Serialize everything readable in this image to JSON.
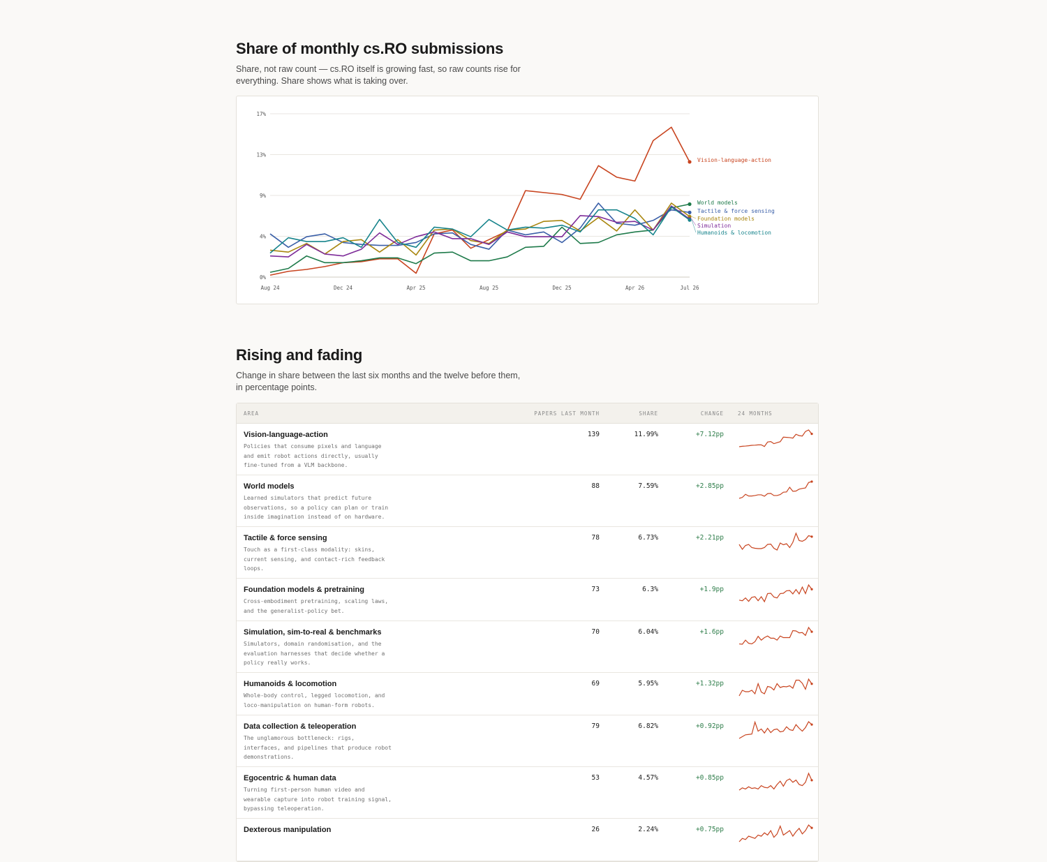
{
  "section1": {
    "title": "Share of monthly cs.RO submissions",
    "subtitle": "Share, not raw count — cs.RO itself is growing fast, so raw counts rise for everything. Share shows what is taking over."
  },
  "chart_data": {
    "type": "line",
    "x": [
      "Aug 24",
      "Sep 24",
      "Oct 24",
      "Nov 24",
      "Dec 24",
      "Jan 25",
      "Feb 25",
      "Mar 25",
      "Apr 25",
      "May 25",
      "Jun 25",
      "Jul 25",
      "Aug 25",
      "Sep 25",
      "Oct 25",
      "Nov 25",
      "Dec 25",
      "Jan 26",
      "Feb 26",
      "Mar 26",
      "Apr 26",
      "May 26",
      "Jun 26",
      "Jul 26"
    ],
    "x_tick_labels": [
      "Aug 24",
      "Dec 24",
      "Apr 25",
      "Aug 25",
      "Dec 25",
      "Apr 26",
      "Jul 26"
    ],
    "y_tick_labels": [
      "0%",
      "4%",
      "9%",
      "13%",
      "17%"
    ],
    "ylim": [
      0,
      17
    ],
    "grid": true,
    "legend": "end-of-line labels",
    "series": [
      {
        "name": "Vision-language-action",
        "color": "#c8441f",
        "values": [
          0.2,
          0.6,
          0.8,
          1.1,
          1.5,
          1.6,
          1.9,
          1.9,
          0.4,
          4.5,
          4.9,
          3.0,
          3.9,
          4.8,
          9.0,
          8.8,
          8.6,
          8.1,
          11.6,
          10.4,
          10.0,
          14.2,
          15.6,
          11.99
        ]
      },
      {
        "name": "World models",
        "color": "#1e7a4a",
        "values": [
          0.5,
          0.9,
          2.2,
          1.5,
          1.5,
          1.7,
          2.0,
          2.0,
          1.4,
          2.5,
          2.6,
          1.7,
          1.7,
          2.1,
          3.1,
          3.2,
          5.2,
          3.5,
          3.6,
          4.4,
          4.7,
          4.9,
          7.2,
          7.59
        ]
      },
      {
        "name": "Tactile & force sensing",
        "color": "#3a5fa8",
        "values": [
          4.5,
          3.1,
          4.2,
          4.5,
          3.6,
          3.4,
          3.3,
          3.3,
          3.6,
          4.5,
          4.6,
          3.4,
          2.9,
          4.9,
          4.4,
          4.7,
          3.6,
          5.1,
          7.7,
          5.6,
          5.4,
          5.9,
          7.0,
          6.73
        ]
      },
      {
        "name": "Foundation models & pretraining",
        "color": "#a9860f",
        "values": [
          2.8,
          2.6,
          3.5,
          2.4,
          3.7,
          3.9,
          2.6,
          3.9,
          2.3,
          4.9,
          5.0,
          3.8,
          3.5,
          4.9,
          5.0,
          5.8,
          5.9,
          4.8,
          6.2,
          4.8,
          7.0,
          4.9,
          7.7,
          6.3
        ]
      },
      {
        "name": "Simulation, sim-to-real & benchmarks",
        "color": "#7e2c99",
        "values": [
          2.2,
          2.1,
          3.4,
          2.4,
          2.2,
          2.9,
          4.6,
          3.4,
          4.2,
          4.7,
          4.0,
          4.0,
          3.4,
          4.7,
          4.2,
          4.2,
          4.2,
          6.4,
          6.3,
          5.7,
          5.8,
          4.9,
          7.4,
          6.04
        ]
      },
      {
        "name": "Humanoids & locomotion",
        "color": "#17848c",
        "values": [
          2.5,
          4.1,
          3.7,
          3.7,
          4.1,
          3.1,
          6.0,
          3.6,
          3.1,
          5.2,
          5.0,
          4.2,
          6.0,
          4.9,
          5.2,
          5.1,
          5.4,
          4.7,
          7.0,
          7.0,
          6.1,
          4.4,
          7.3,
          5.95
        ]
      }
    ],
    "end_labels": [
      "Vision-language-action",
      "World models",
      "Tactile & force sensing",
      "Foundation models",
      "Simulation",
      "Humanoids & locomotion"
    ]
  },
  "section2": {
    "title": "Rising and fading",
    "subtitle": "Change in share between the last six months and the twelve before them, in percentage points."
  },
  "table": {
    "headers": {
      "area": "AREA",
      "papers": "PAPERS LAST MONTH",
      "share": "SHARE",
      "change": "CHANGE",
      "months": "24 MONTHS"
    },
    "rows": [
      {
        "name": "Vision-language-action",
        "desc": "Policies that consume pixels and language and emit robot actions directly, usually fine-tuned from a VLM backbone.",
        "papers": "139",
        "share": "11.99%",
        "change": "+7.12pp",
        "spark": [
          0.2,
          0.6,
          0.8,
          1.1,
          1.5,
          1.6,
          1.9,
          1.9,
          0.4,
          4.5,
          4.9,
          3.0,
          3.9,
          4.8,
          9.0,
          8.8,
          8.6,
          8.1,
          11.6,
          10.4,
          10.0,
          14.2,
          15.6,
          11.99
        ]
      },
      {
        "name": "World models",
        "desc": "Learned simulators that predict future observations, so a policy can plan or train inside imagination instead of on hardware.",
        "papers": "88",
        "share": "7.59%",
        "change": "+2.85pp",
        "spark": [
          0.5,
          0.9,
          2.2,
          1.5,
          1.5,
          1.7,
          2.0,
          2.0,
          1.4,
          2.5,
          2.6,
          1.7,
          1.7,
          2.1,
          3.1,
          3.2,
          5.2,
          3.5,
          3.6,
          4.4,
          4.7,
          4.9,
          7.2,
          7.59
        ]
      },
      {
        "name": "Tactile & force sensing",
        "desc": "Touch as a first-class modality: skins, current sensing, and contact-rich feedback loops.",
        "papers": "78",
        "share": "6.73%",
        "change": "+2.21pp",
        "spark": [
          4.5,
          3.1,
          4.2,
          4.5,
          3.6,
          3.4,
          3.3,
          3.3,
          3.6,
          4.5,
          4.6,
          3.4,
          2.9,
          4.9,
          4.4,
          4.7,
          3.6,
          5.1,
          7.7,
          5.6,
          5.4,
          5.9,
          7.0,
          6.73
        ]
      },
      {
        "name": "Foundation models & pretraining",
        "desc": "Cross-embodiment pretraining, scaling laws, and the generalist-policy bet.",
        "papers": "73",
        "share": "6.3%",
        "change": "+1.9pp",
        "spark": [
          2.8,
          2.6,
          3.5,
          2.4,
          3.7,
          3.9,
          2.6,
          3.9,
          2.3,
          4.9,
          5.0,
          3.8,
          3.5,
          4.9,
          5.0,
          5.8,
          5.9,
          4.8,
          6.2,
          4.8,
          7.0,
          4.9,
          7.7,
          6.3
        ]
      },
      {
        "name": "Simulation, sim-to-real & benchmarks",
        "desc": "Simulators, domain randomisation, and the evaluation harnesses that decide whether a policy really works.",
        "papers": "70",
        "share": "6.04%",
        "change": "+1.6pp",
        "spark": [
          2.2,
          2.1,
          3.4,
          2.4,
          2.2,
          2.9,
          4.6,
          3.4,
          4.2,
          4.7,
          4.0,
          4.0,
          3.4,
          4.7,
          4.2,
          4.2,
          4.2,
          6.4,
          6.3,
          5.7,
          5.8,
          4.9,
          7.4,
          6.04
        ]
      },
      {
        "name": "Humanoids & locomotion",
        "desc": "Whole-body control, legged locomotion, and loco-manipulation on human-form robots.",
        "papers": "69",
        "share": "5.95%",
        "change": "+1.32pp",
        "spark": [
          2.5,
          4.1,
          3.7,
          3.7,
          4.1,
          3.1,
          6.0,
          3.6,
          3.1,
          5.2,
          5.0,
          4.2,
          6.0,
          4.9,
          5.2,
          5.1,
          5.4,
          4.7,
          7.0,
          7.0,
          6.1,
          4.4,
          7.3,
          5.95
        ]
      },
      {
        "name": "Data collection & teleoperation",
        "desc": "The unglamorous bottleneck: rigs, interfaces, and pipelines that produce robot demonstrations.",
        "papers": "79",
        "share": "6.82%",
        "change": "+0.92pp",
        "spark": [
          3.0,
          3.5,
          4.0,
          4.1,
          4.2,
          7.5,
          5.0,
          5.6,
          4.5,
          5.8,
          4.6,
          5.4,
          5.6,
          4.8,
          5.0,
          6.2,
          5.4,
          5.2,
          6.8,
          5.8,
          5.0,
          6.0,
          7.6,
          6.82
        ]
      },
      {
        "name": "Egocentric & human data",
        "desc": "Turning first-person human video and wearable capture into robot training signal, bypassing teleoperation.",
        "papers": "53",
        "share": "4.57%",
        "change": "+0.85pp",
        "spark": [
          2.8,
          3.2,
          3.0,
          3.4,
          3.1,
          3.2,
          3.0,
          3.6,
          3.3,
          3.2,
          3.6,
          3.0,
          3.8,
          4.4,
          3.5,
          4.5,
          4.8,
          4.2,
          4.6,
          3.8,
          3.6,
          4.2,
          5.8,
          4.57
        ]
      },
      {
        "name": "Dexterous manipulation",
        "desc": "",
        "papers": "26",
        "share": "2.24%",
        "change": "+0.75pp",
        "spark": [
          1.0,
          1.3,
          1.2,
          1.5,
          1.4,
          1.3,
          1.6,
          1.5,
          1.8,
          1.6,
          2.0,
          1.4,
          1.7,
          2.4,
          1.6,
          1.8,
          2.0,
          1.5,
          1.9,
          2.2,
          1.7,
          2.0,
          2.5,
          2.24
        ]
      }
    ]
  }
}
